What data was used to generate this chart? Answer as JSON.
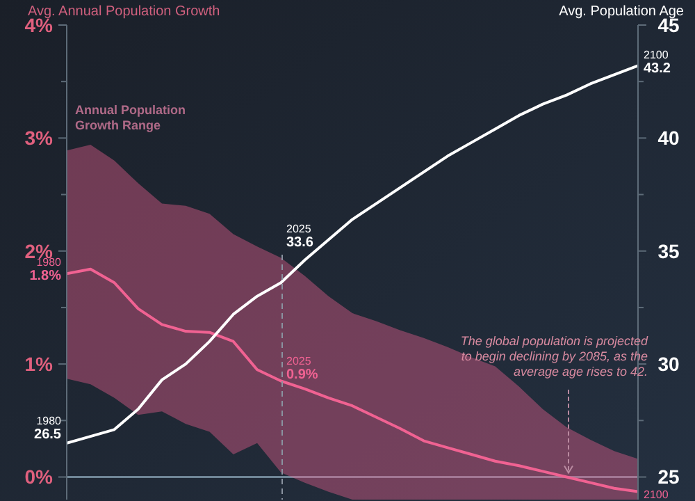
{
  "chart_data": {
    "type": "line",
    "ylabel": "Avg. Annual Population Growth",
    "y2label": "Avg. Population Age",
    "categories": [
      null,
      null,
      null,
      null,
      null,
      null,
      null,
      null,
      null,
      null,
      null,
      null,
      null,
      null,
      null,
      null,
      null,
      null,
      null,
      null,
      null,
      null,
      null,
      null,
      null
    ],
    "ylim": [
      -0.2,
      4
    ],
    "yticks": [
      {
        "value": 0,
        "label": "0%"
      },
      {
        "value": 0.5,
        "label": null
      },
      {
        "value": 1,
        "label": "1%"
      },
      {
        "value": 1.5,
        "label": null
      },
      {
        "value": 2,
        "label": "2%"
      },
      {
        "value": 2.5,
        "label": null
      },
      {
        "value": 3,
        "label": "3%"
      },
      {
        "value": 3.5,
        "label": null
      },
      {
        "value": 4,
        "label": "4%"
      }
    ],
    "y2lim": [
      24,
      45
    ],
    "y2ticks": [
      25,
      {
        "value": 27.5,
        "label": null
      },
      30,
      {
        "value": 32.5,
        "label": null
      },
      35,
      {
        "value": 37.5,
        "label": null
      },
      40,
      {
        "value": 42.5,
        "label": null
      },
      45
    ],
    "series": [
      {
        "color": "#f06292",
        "values": [
          1.8,
          1.84,
          1.72,
          1.49,
          1.35,
          1.29,
          1.28,
          1.2,
          0.95,
          0.85,
          0.78,
          0.7,
          0.63,
          0.53,
          0.43,
          0.32,
          0.26,
          0.2,
          0.14,
          0.1,
          0.05,
          0,
          -0.05,
          -0.1,
          -0.13
        ],
        "lower": [
          0.87,
          0.82,
          0.7,
          0.55,
          0.58,
          0.47,
          0.4,
          0.2,
          0.3,
          0.04,
          -0.05,
          -0.13,
          -0.2,
          -0.2,
          -0.2,
          -0.2,
          -0.2,
          -0.2,
          -0.2,
          -0.2,
          -0.2,
          -0.2,
          -0.2,
          -0.2,
          -0.2
        ],
        "upper": [
          2.89,
          2.94,
          2.8,
          2.6,
          2.42,
          2.4,
          2.33,
          2.15,
          2.04,
          1.94,
          1.78,
          1.6,
          1.45,
          1.38,
          1.3,
          1.23,
          1.15,
          1.06,
          0.98,
          0.8,
          0.6,
          0.44,
          0.33,
          0.23,
          0.16
        ]
      },
      {
        "color": "#ffffff",
        "axis": "y2",
        "values": [
          26.5,
          26.8,
          27.1,
          28.0,
          29.3,
          30.0,
          31.0,
          32.2,
          33.0,
          33.6,
          34.6,
          35.5,
          36.4,
          37.1,
          37.8,
          38.5,
          39.2,
          39.8,
          40.4,
          41.0,
          41.5,
          41.9,
          42.4,
          42.8,
          43.2
        ]
      }
    ],
    "annotations": [
      "Annual Population Growth Range",
      "1980\n1.8%",
      "2025\n0.9%",
      "1980\n26.5",
      "2025\n33.6",
      "2100\n43.2",
      "2100",
      "The global population is projected to begin declining by 2085, as the average age rises to 42."
    ]
  }
}
